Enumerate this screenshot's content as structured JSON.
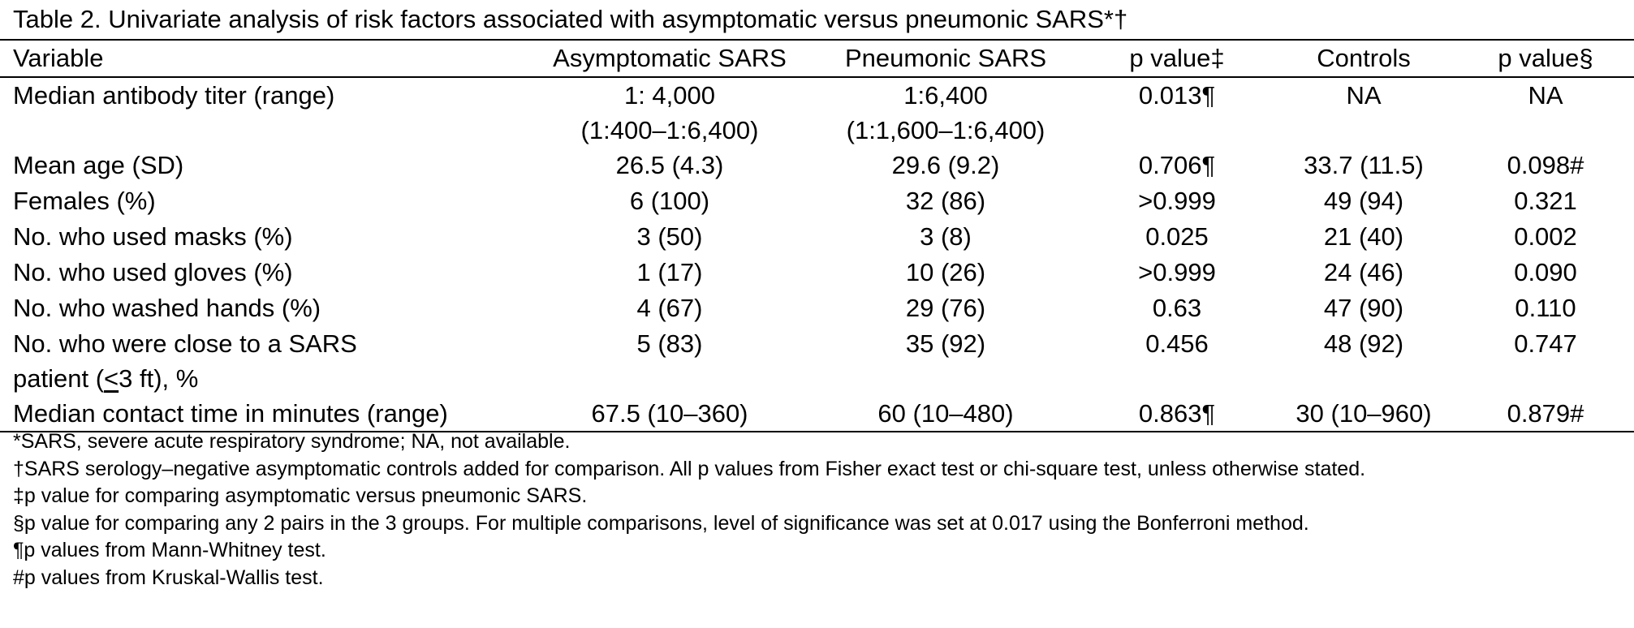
{
  "caption": "Table 2. Univariate analysis of risk factors associated with asymptomatic versus pneumonic SARS*†",
  "columns": [
    "Variable",
    "Asymptomatic SARS",
    "Pneumonic SARS",
    "p value‡",
    "Controls",
    "p value§"
  ],
  "rows": [
    {
      "variable": "Median antibody titer (range)",
      "variable_line2": "",
      "asymptomatic": "1: 4,000",
      "asymptomatic_line2": "(1:400–1:6,400)",
      "pneumonic": "1:6,400",
      "pneumonic_line2": "(1:1,600–1:6,400)",
      "p1": "0.013¶",
      "controls": "NA",
      "p2": "NA"
    },
    {
      "variable": "Mean age (SD)",
      "variable_line2": "",
      "asymptomatic": "26.5 (4.3)",
      "asymptomatic_line2": "",
      "pneumonic": "29.6 (9.2)",
      "pneumonic_line2": "",
      "p1": "0.706¶",
      "controls": "33.7 (11.5)",
      "p2": "0.098#"
    },
    {
      "variable": "Females (%)",
      "variable_line2": "",
      "asymptomatic": "6 (100)",
      "asymptomatic_line2": "",
      "pneumonic": "32 (86)",
      "pneumonic_line2": "",
      "p1": ">0.999",
      "controls": "49 (94)",
      "p2": "0.321"
    },
    {
      "variable": "No. who used masks (%)",
      "variable_line2": "",
      "asymptomatic": "3 (50)",
      "asymptomatic_line2": "",
      "pneumonic": "3 (8)",
      "pneumonic_line2": "",
      "p1": "0.025",
      "controls": "21 (40)",
      "p2": "0.002"
    },
    {
      "variable": "No. who used gloves (%)",
      "variable_line2": "",
      "asymptomatic": "1 (17)",
      "asymptomatic_line2": "",
      "pneumonic": "10 (26)",
      "pneumonic_line2": "",
      "p1": ">0.999",
      "controls": "24 (46)",
      "p2": "0.090"
    },
    {
      "variable": "No. who washed hands (%)",
      "variable_line2": "",
      "asymptomatic": "4 (67)",
      "asymptomatic_line2": "",
      "pneumonic": "29 (76)",
      "pneumonic_line2": "",
      "p1": "0.63",
      "controls": "47 (90)",
      "p2": "0.110"
    },
    {
      "variable": "No. who were close to a SARS",
      "variable_line2_pre": "patient (",
      "variable_line2_sym": "<",
      "variable_line2_post": "3 ft), %",
      "asymptomatic": "5 (83)",
      "asymptomatic_line2": "",
      "pneumonic": "35 (92)",
      "pneumonic_line2": "",
      "p1": "0.456",
      "controls": "48 (92)",
      "p2": "0.747"
    },
    {
      "variable": "Median contact time in minutes (range)",
      "variable_line2": "",
      "asymptomatic": "67.5 (10–360)",
      "asymptomatic_line2": "",
      "pneumonic": "60 (10–480)",
      "pneumonic_line2": "",
      "p1": "0.863¶",
      "controls": "30 (10–960)",
      "p2": "0.879#"
    }
  ],
  "footnotes": [
    "*SARS, severe acute respiratory syndrome; NA, not available.",
    "†SARS serology–negative asymptomatic controls added for comparison. All p values from Fisher exact test or chi-square test, unless otherwise stated.",
    "‡p value for comparing asymptomatic versus pneumonic SARS.",
    "§p value for comparing any 2 pairs in the 3 groups. For multiple comparisons, level of significance was set at 0.017 using the Bonferroni method.",
    "¶p values from Mann-Whitney test.",
    "#p values from Kruskal-Wallis test."
  ]
}
